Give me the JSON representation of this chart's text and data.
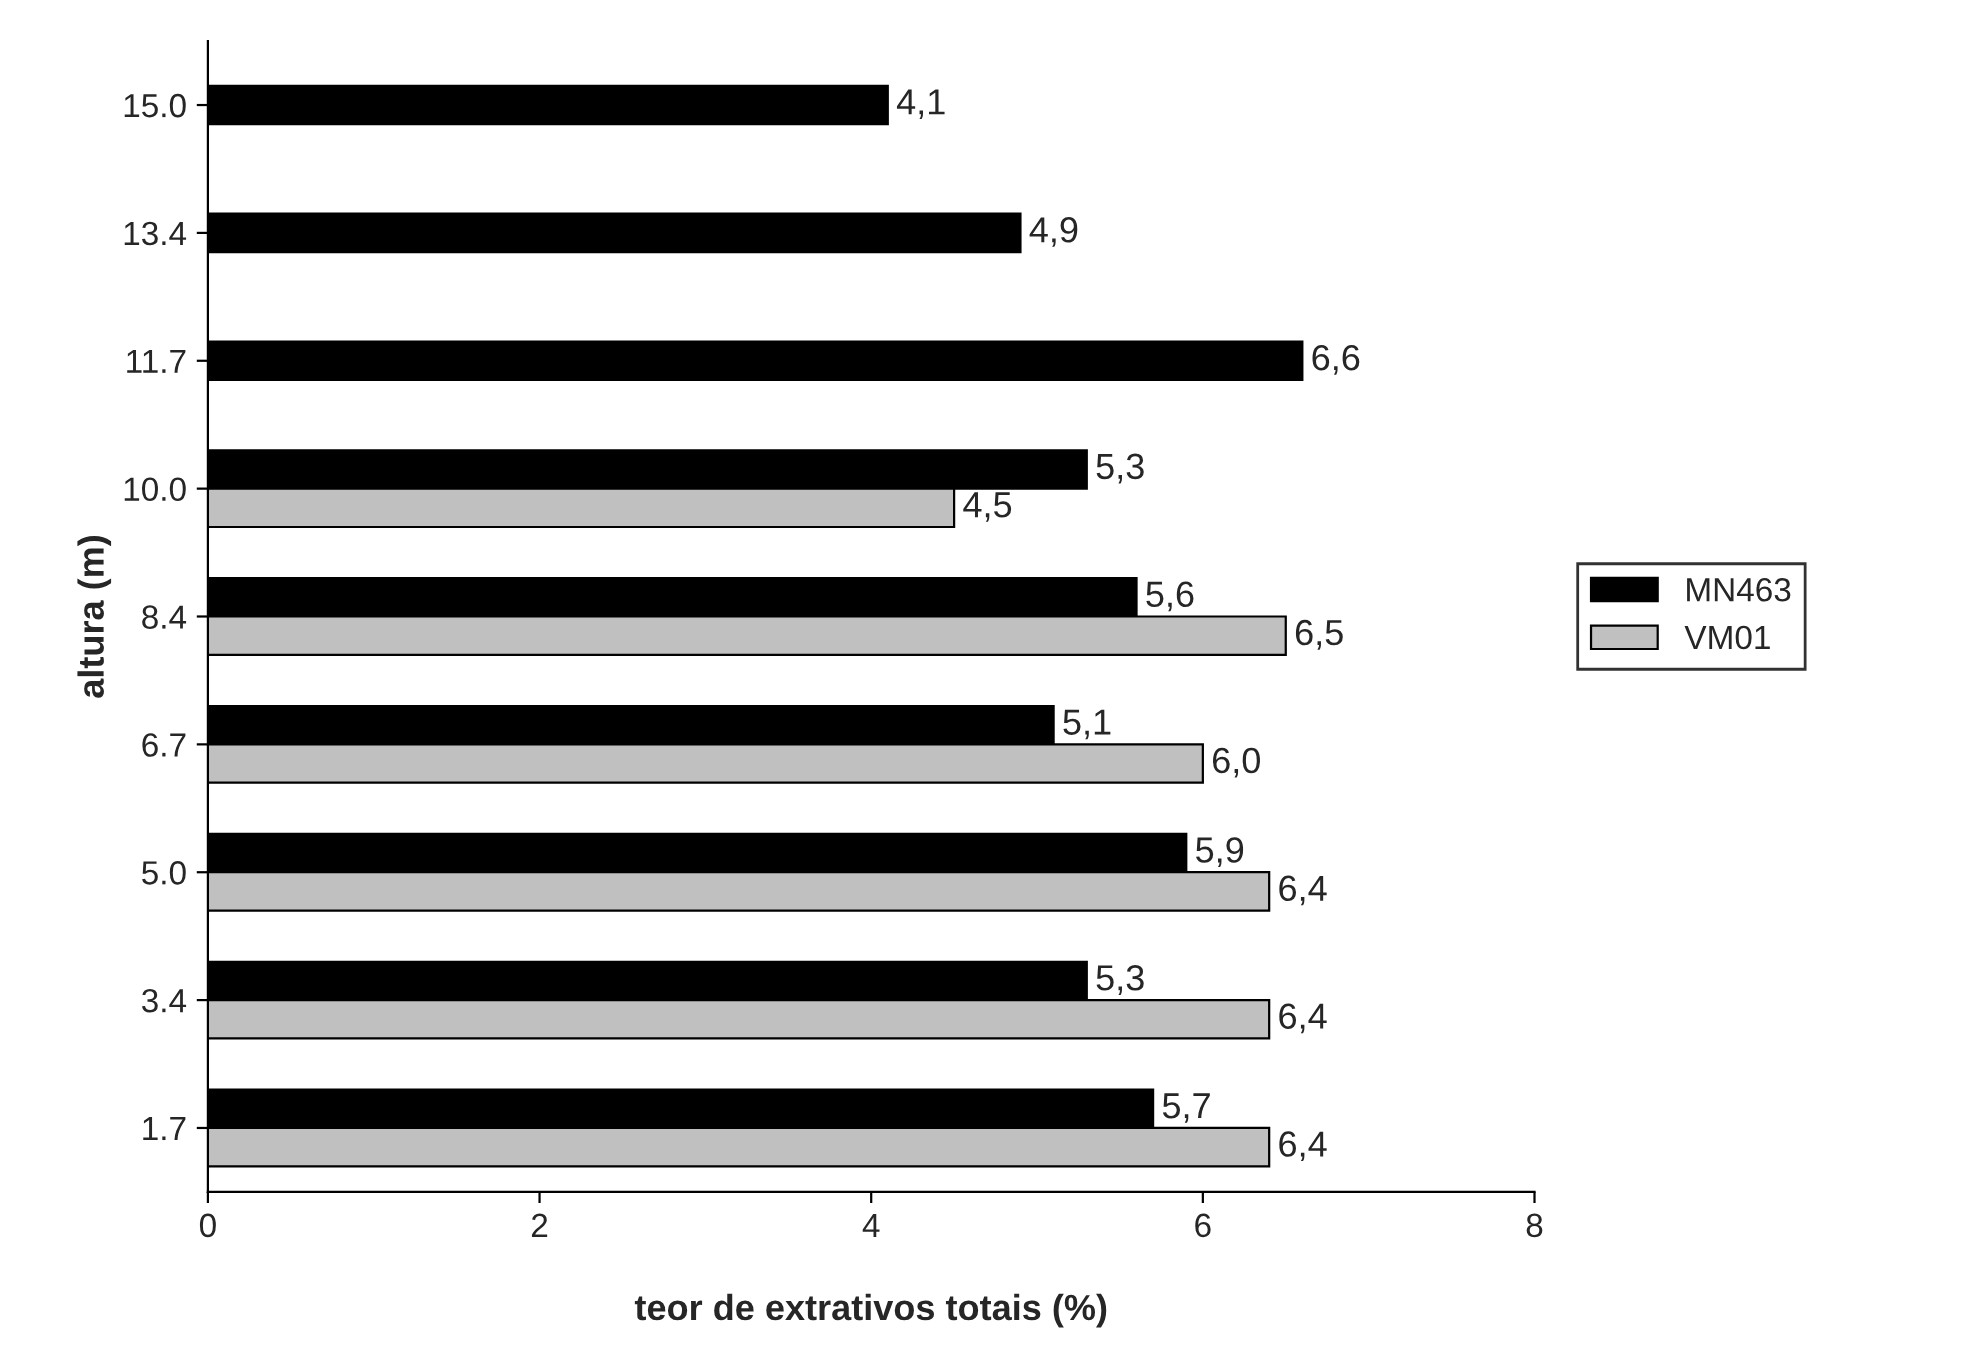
{
  "chart_data": {
    "type": "bar",
    "orientation": "horizontal",
    "xlabel": "teor de extrativos totais (%)",
    "ylabel": "altura (m)",
    "categories": [
      "15.0",
      "13.4",
      "11.7",
      "10.0",
      "8.4",
      "6.7",
      "5.0",
      "3.4",
      "1.7"
    ],
    "series": [
      {
        "name": "MN463",
        "color": "#000000",
        "values": [
          4.1,
          4.9,
          6.6,
          5.3,
          5.6,
          5.1,
          5.9,
          5.3,
          5.7
        ],
        "value_labels": [
          "4,1",
          "4,9",
          "6,6",
          "5,3",
          "5,6",
          "5,1",
          "5,9",
          "5,3",
          "5,7"
        ]
      },
      {
        "name": "VM01",
        "color": "#c0c0c0",
        "values": [
          null,
          null,
          null,
          4.5,
          6.5,
          6.0,
          6.4,
          6.4,
          6.4
        ],
        "value_labels": [
          null,
          null,
          null,
          "4,5",
          "6,5",
          "6,0",
          "6,4",
          "6,4",
          "6,4"
        ]
      }
    ],
    "xlim": [
      0,
      8
    ],
    "xticks": [
      0,
      2,
      4,
      6,
      8
    ],
    "grid": false,
    "legend": "right"
  }
}
